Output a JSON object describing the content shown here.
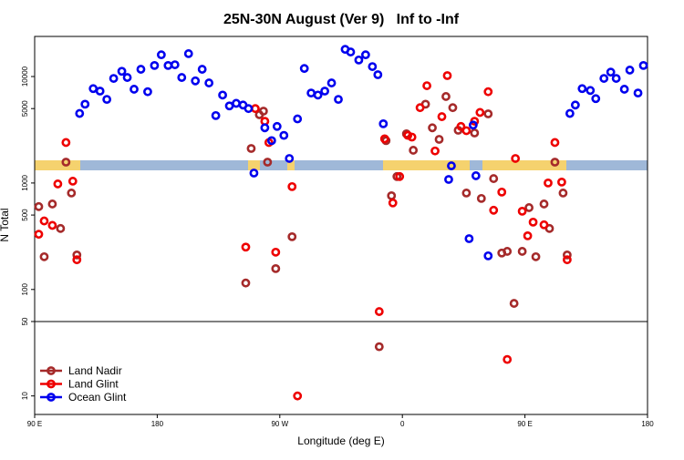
{
  "chart_data": {
    "type": "scatter",
    "title": "25N-30N August (Ver 9)   Inf to -Inf",
    "xlabel": "Longitude (deg E)",
    "ylabel": "N Total",
    "xlim": [
      90,
      540
    ],
    "ylim": [
      6.7,
      23800
    ],
    "ylog": true,
    "xticks": [
      {
        "value": 90,
        "label": "90 E"
      },
      180,
      {
        "value": 270,
        "label": "90 W"
      },
      {
        "value": 360,
        "label": "0"
      },
      {
        "value": 450,
        "label": "90 E"
      },
      {
        "value": 540,
        "label": "180"
      }
    ],
    "yticks": [
      10,
      50,
      100,
      500,
      1000,
      5000,
      10000
    ],
    "reference_line": 50,
    "legend": "lower left",
    "series": [
      {
        "name": "Land Nadir",
        "color": "#a52a2a",
        "x": [
          93,
          97,
          103,
          109,
          113,
          117,
          121,
          245,
          249,
          255,
          258,
          261,
          267,
          279,
          343,
          348,
          352,
          356,
          363,
          368,
          377,
          382,
          387,
          392,
          397,
          401,
          407,
          413,
          418,
          423,
          427,
          433,
          437,
          442,
          448,
          453,
          458,
          464,
          468,
          472,
          478,
          481
        ],
        "values": [
          600,
          203,
          635,
          374,
          1570,
          805,
          211,
          115,
          2110,
          4380,
          4730,
          1570,
          157,
          313,
          29,
          2500,
          759,
          1150,
          2900,
          2030,
          5500,
          3300,
          2570,
          6490,
          5100,
          3130,
          805,
          2950,
          716,
          4460,
          1100,
          220,
          228,
          74,
          228,
          587,
          203,
          635,
          374,
          1570,
          805,
          211
        ]
      },
      {
        "name": "Land Glint",
        "color": "#ee0000",
        "x": [
          93,
          97,
          103,
          107,
          113,
          118,
          121,
          245,
          252,
          259,
          262,
          267,
          279,
          283,
          343,
          347,
          353,
          358,
          364,
          367,
          373,
          378,
          384,
          389,
          393,
          403,
          407,
          413,
          417,
          423,
          427,
          433,
          437,
          443,
          448,
          452,
          456,
          464,
          467,
          472,
          477,
          481
        ],
        "values": [
          330,
          440,
          400,
          980,
          2400,
          1040,
          190,
          250,
          5000,
          3800,
          2400,
          224,
          925,
          10,
          62,
          2600,
          650,
          1150,
          2800,
          2700,
          5100,
          8200,
          2000,
          4200,
          10200,
          3400,
          3100,
          3800,
          4600,
          7200,
          555,
          822,
          22,
          1700,
          543,
          319,
          429,
          405,
          1000,
          2400,
          1020,
          190
        ]
      },
      {
        "name": "Ocean Glint",
        "color": "#0000ee",
        "x": [
          123,
          127,
          133,
          138,
          143,
          148,
          154,
          158,
          163,
          168,
          173,
          178,
          183,
          188,
          193,
          198,
          203,
          208,
          213,
          218,
          223,
          228,
          233,
          238,
          243,
          247,
          251,
          259,
          264,
          268,
          273,
          277,
          283,
          288,
          293,
          298,
          303,
          308,
          313,
          318,
          322,
          328,
          333,
          338,
          342,
          346,
          394,
          396,
          409,
          412,
          414,
          423,
          483,
          487,
          492,
          498,
          502,
          508,
          513,
          517,
          523,
          527,
          533,
          537
        ],
        "values": [
          4500,
          5500,
          7700,
          7300,
          6100,
          9600,
          11200,
          9800,
          7600,
          11700,
          7200,
          12700,
          16000,
          12700,
          12900,
          9800,
          16400,
          9100,
          11700,
          8700,
          4300,
          6700,
          5300,
          5600,
          5400,
          5000,
          1240,
          3300,
          2500,
          3400,
          2800,
          1700,
          4000,
          11900,
          7000,
          6700,
          7300,
          8700,
          6100,
          18000,
          17000,
          14300,
          16000,
          12400,
          10400,
          3600,
          1080,
          1450,
          300,
          3500,
          1170,
          207,
          4500,
          5400,
          7700,
          7400,
          6200,
          9600,
          11000,
          9600,
          7600,
          11500,
          7000,
          12700
        ]
      }
    ]
  }
}
